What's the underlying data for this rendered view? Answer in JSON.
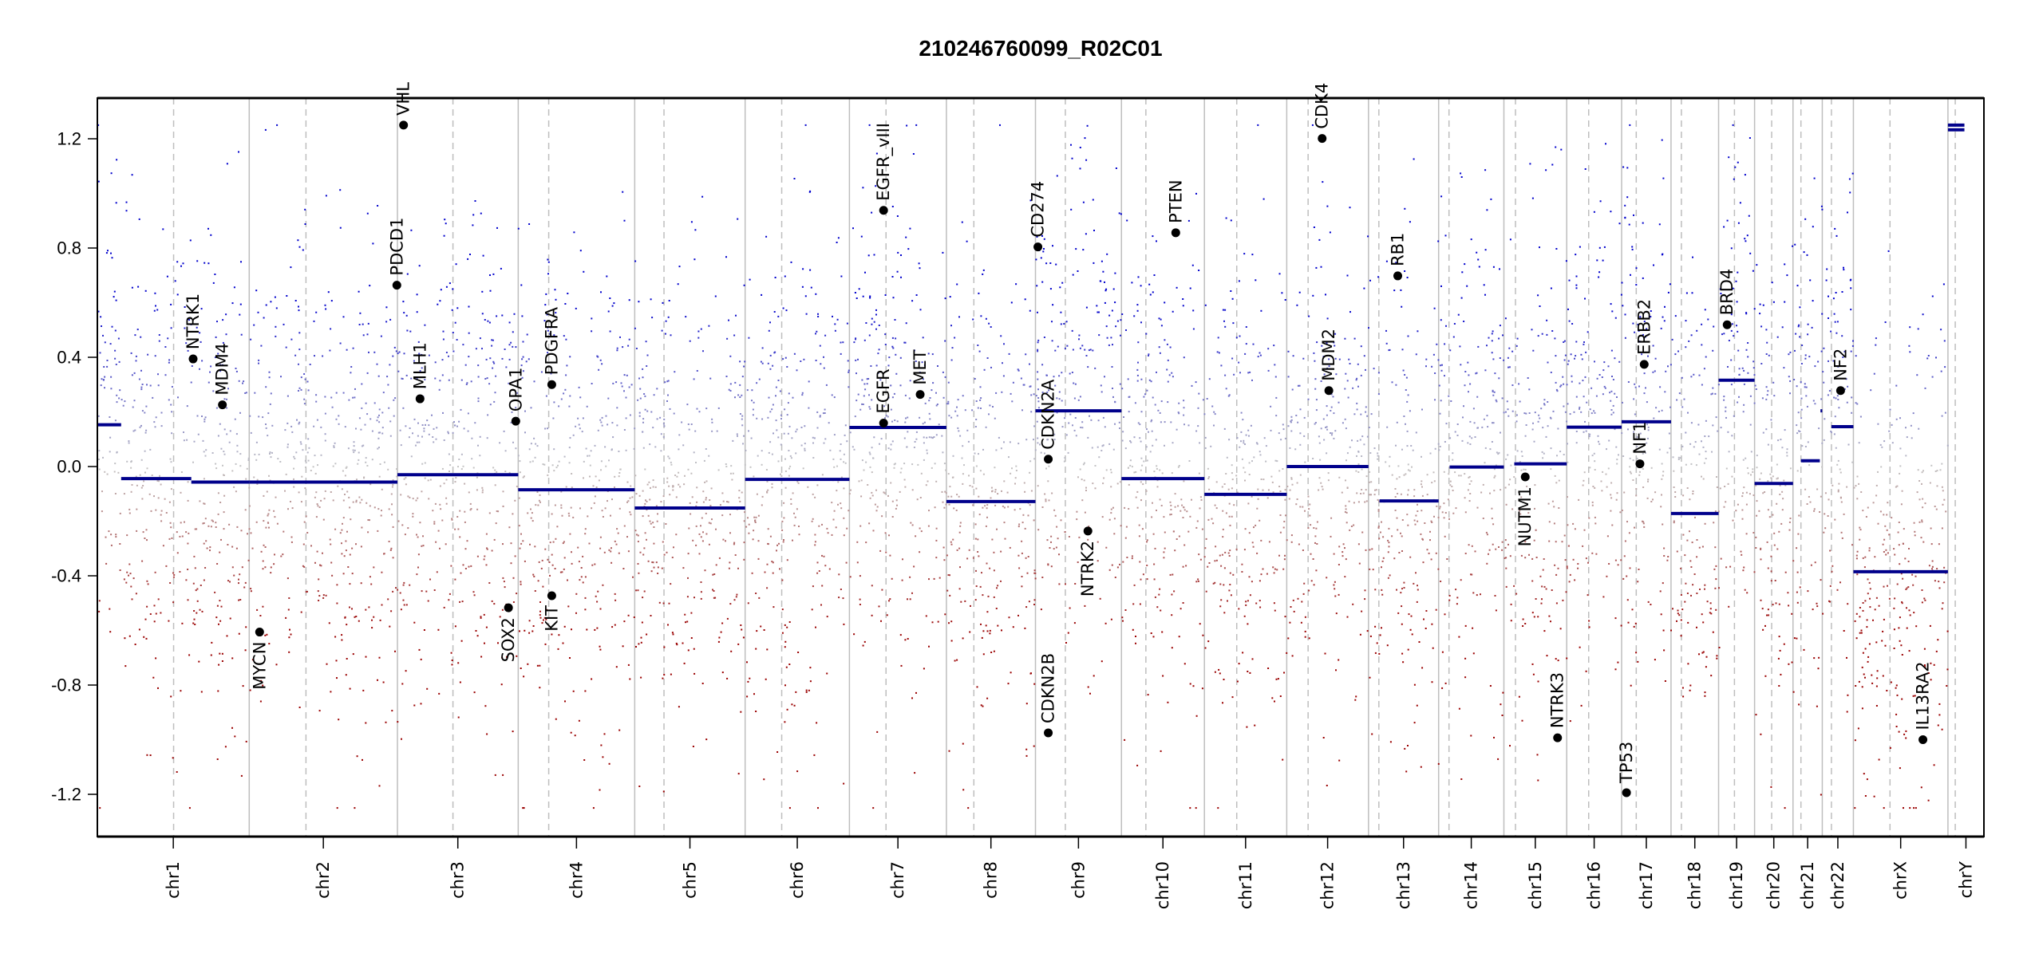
{
  "chart_data": {
    "type": "scatter",
    "title": "210246760099_R02C01",
    "xlabel": "",
    "ylabel": "",
    "ylim": [
      -1.35,
      1.35
    ],
    "xlim_mb": [
      0,
      3093
    ],
    "yticks": [
      -1.2,
      -0.8,
      -0.4,
      0.0,
      0.4,
      0.8,
      1.2
    ],
    "ytick_labels": [
      "-1.2",
      "-0.8",
      "-0.4",
      "0.0",
      "0.4",
      "0.8",
      "1.2"
    ],
    "colors": {
      "gain": "#0000cc",
      "loss": "#9a0000",
      "neutral": "#c4c4c4",
      "segment": "#00008b",
      "gene_dot": "#000000",
      "boundary": "#bebebe"
    },
    "chromosomes": [
      {
        "name": "chr1",
        "length": 249,
        "centromere": 125
      },
      {
        "name": "chr2",
        "length": 243,
        "centromere": 93
      },
      {
        "name": "chr3",
        "length": 198,
        "centromere": 91
      },
      {
        "name": "chr4",
        "length": 191,
        "centromere": 50
      },
      {
        "name": "chr5",
        "length": 181,
        "centromere": 48
      },
      {
        "name": "chr6",
        "length": 171,
        "centromere": 60
      },
      {
        "name": "chr7",
        "length": 159,
        "centromere": 60
      },
      {
        "name": "chr8",
        "length": 146,
        "centromere": 45
      },
      {
        "name": "chr9",
        "length": 141,
        "centromere": 49
      },
      {
        "name": "chr10",
        "length": 136,
        "centromere": 40
      },
      {
        "name": "chr11",
        "length": 135,
        "centromere": 53
      },
      {
        "name": "chr12",
        "length": 134,
        "centromere": 35
      },
      {
        "name": "chr13",
        "length": 115,
        "centromere": 17
      },
      {
        "name": "chr14",
        "length": 107,
        "centromere": 17
      },
      {
        "name": "chr15",
        "length": 103,
        "centromere": 19
      },
      {
        "name": "chr16",
        "length": 90,
        "centromere": 36
      },
      {
        "name": "chr17",
        "length": 81,
        "centromere": 24
      },
      {
        "name": "chr18",
        "length": 78,
        "centromere": 17
      },
      {
        "name": "chr19",
        "length": 59,
        "centromere": 26
      },
      {
        "name": "chr20",
        "length": 63,
        "centromere": 28
      },
      {
        "name": "chr21",
        "length": 48,
        "centromere": 13
      },
      {
        "name": "chr22",
        "length": 51,
        "centromere": 15
      },
      {
        "name": "chrX",
        "length": 155,
        "centromere": 60
      },
      {
        "name": "chrY",
        "length": 59,
        "centromere": 12
      }
    ],
    "segments": [
      {
        "chr": "chr1",
        "start": 0,
        "end": 39,
        "value": 0.153
      },
      {
        "chr": "chr1",
        "start": 39,
        "end": 154,
        "value": -0.044
      },
      {
        "chr": "chr1",
        "start": 154,
        "end": 249,
        "value": -0.057
      },
      {
        "chr": "chr2",
        "start": 0,
        "end": 243,
        "value": -0.057
      },
      {
        "chr": "chr3",
        "start": 0,
        "end": 198,
        "value": -0.03
      },
      {
        "chr": "chr4",
        "start": 0,
        "end": 191,
        "value": -0.085
      },
      {
        "chr": "chr5",
        "start": 0,
        "end": 181,
        "value": -0.152
      },
      {
        "chr": "chr6",
        "start": 0,
        "end": 171,
        "value": -0.047
      },
      {
        "chr": "chr7",
        "start": 0,
        "end": 159,
        "value": 0.143
      },
      {
        "chr": "chr8",
        "start": 0,
        "end": 146,
        "value": -0.128
      },
      {
        "chr": "chr9",
        "start": 0,
        "end": 141,
        "value": 0.204
      },
      {
        "chr": "chr10",
        "start": 0,
        "end": 136,
        "value": -0.044
      },
      {
        "chr": "chr11",
        "start": 0,
        "end": 135,
        "value": -0.102
      },
      {
        "chr": "chr12",
        "start": 0,
        "end": 134,
        "value": 0.0
      },
      {
        "chr": "chr13",
        "start": 18,
        "end": 115,
        "value": -0.126
      },
      {
        "chr": "chr14",
        "start": 18,
        "end": 107,
        "value": -0.002
      },
      {
        "chr": "chr15",
        "start": 17,
        "end": 103,
        "value": 0.01
      },
      {
        "chr": "chr16",
        "start": 0,
        "end": 90,
        "value": 0.144
      },
      {
        "chr": "chr17",
        "start": 0,
        "end": 81,
        "value": 0.164
      },
      {
        "chr": "chr18",
        "start": 0,
        "end": 78,
        "value": -0.172
      },
      {
        "chr": "chr19",
        "start": 0,
        "end": 59,
        "value": 0.316
      },
      {
        "chr": "chr20",
        "start": 0,
        "end": 63,
        "value": -0.062
      },
      {
        "chr": "chr21",
        "start": 13,
        "end": 44,
        "value": 0.021
      },
      {
        "chr": "chr21",
        "start": 45,
        "end": 48,
        "value": 0.204
      },
      {
        "chr": "chr22",
        "start": 15,
        "end": 51,
        "value": 0.146
      },
      {
        "chr": "chrX",
        "start": 0,
        "end": 155,
        "value": -0.385
      },
      {
        "chr": "chrY",
        "start": 0,
        "end": 27,
        "value": 1.233
      },
      {
        "chr": "chrY",
        "start": 0,
        "end": 27,
        "value": 1.25
      }
    ],
    "genes": [
      {
        "name": "NTRK1",
        "chr": "chr1",
        "pos": 157,
        "value": 0.394
      },
      {
        "name": "MDM4",
        "chr": "chr1",
        "pos": 205,
        "value": 0.226
      },
      {
        "name": "MYCN",
        "chr": "chr2",
        "pos": 17,
        "value": -0.606
      },
      {
        "name": "PDCD1",
        "chr": "chr2",
        "pos": 242,
        "value": 0.664
      },
      {
        "name": "VHL",
        "chr": "chr3",
        "pos": 10,
        "value": 1.25
      },
      {
        "name": "MLH1",
        "chr": "chr3",
        "pos": 37,
        "value": 0.248
      },
      {
        "name": "SOX2",
        "chr": "chr3",
        "pos": 182,
        "value": -0.517
      },
      {
        "name": "OPA1",
        "chr": "chr3",
        "pos": 194,
        "value": 0.166
      },
      {
        "name": "PDGFRA",
        "chr": "chr4",
        "pos": 55,
        "value": 0.3
      },
      {
        "name": "KIT",
        "chr": "chr4",
        "pos": 55,
        "value": -0.473
      },
      {
        "name": "EGFR",
        "chr": "chr7",
        "pos": 56,
        "value": 0.159
      },
      {
        "name": "EGFR_vIII",
        "chr": "chr7",
        "pos": 56,
        "value": 0.938
      },
      {
        "name": "MET",
        "chr": "chr7",
        "pos": 116,
        "value": 0.264
      },
      {
        "name": "CD274",
        "chr": "chr9",
        "pos": 4,
        "value": 0.804
      },
      {
        "name": "CDKN2A",
        "chr": "chr9",
        "pos": 21,
        "value": 0.027
      },
      {
        "name": "CDKN2B",
        "chr": "chr9",
        "pos": 21,
        "value": -0.975
      },
      {
        "name": "NTRK2",
        "chr": "chr9",
        "pos": 86,
        "value": -0.236
      },
      {
        "name": "PTEN",
        "chr": "chr10",
        "pos": 89,
        "value": 0.856
      },
      {
        "name": "CDK4",
        "chr": "chr12",
        "pos": 58,
        "value": 1.201
      },
      {
        "name": "MDM2",
        "chr": "chr12",
        "pos": 69,
        "value": 0.278
      },
      {
        "name": "RB1",
        "chr": "chr13",
        "pos": 48,
        "value": 0.698
      },
      {
        "name": "NUTM1",
        "chr": "chr15",
        "pos": 35,
        "value": -0.038
      },
      {
        "name": "NTRK3",
        "chr": "chr15",
        "pos": 88,
        "value": -0.993
      },
      {
        "name": "TP53",
        "chr": "chr17",
        "pos": 8,
        "value": -1.194
      },
      {
        "name": "NF1",
        "chr": "chr17",
        "pos": 30,
        "value": 0.01
      },
      {
        "name": "ERBB2",
        "chr": "chr17",
        "pos": 37,
        "value": 0.374
      },
      {
        "name": "BRD4",
        "chr": "chr19",
        "pos": 14,
        "value": 0.519
      },
      {
        "name": "NF2",
        "chr": "chr22",
        "pos": 30,
        "value": 0.278
      },
      {
        "name": "IL13RA2",
        "chr": "chrX",
        "pos": 114,
        "value": -1.0
      }
    ],
    "probe_clip": 1.25
  }
}
